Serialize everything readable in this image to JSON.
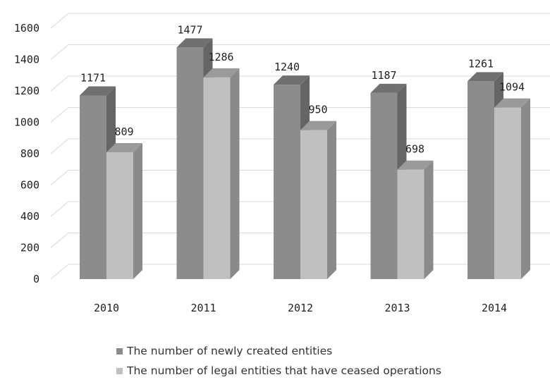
{
  "chart_data": {
    "type": "bar",
    "categories": [
      "2010",
      "2011",
      "2012",
      "2013",
      "2014"
    ],
    "series": [
      {
        "name": "The number of newly created entities",
        "values": [
          1171,
          1477,
          1240,
          1187,
          1261
        ],
        "color": "#8c8c8c"
      },
      {
        "name": "The number of legal entities that have ceased operations",
        "values": [
          809,
          1286,
          950,
          698,
          1094
        ],
        "color": "#c0c0c0"
      }
    ],
    "ylim": [
      0,
      1600
    ],
    "yticks": [
      0,
      200,
      400,
      600,
      800,
      1000,
      1200,
      1400,
      1600
    ],
    "grid": true,
    "three_d": true,
    "legend_position": "bottom",
    "title": "",
    "xlabel": "",
    "ylabel": ""
  }
}
